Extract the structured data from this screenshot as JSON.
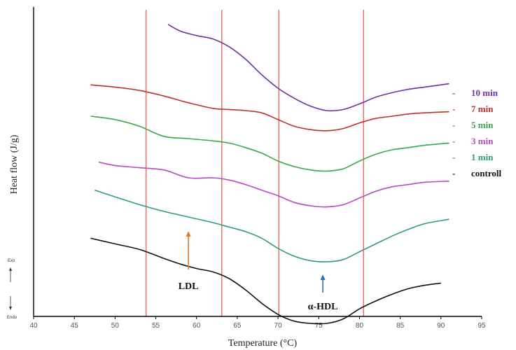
{
  "chart_data": {
    "type": "line",
    "xlabel": "Temperature (°C)",
    "ylabel": "Heat flow (J/g)",
    "xlim": [
      40,
      95
    ],
    "x_ticks": [
      "40",
      "45",
      "50",
      "55",
      "60",
      "65",
      "70",
      "75",
      "80",
      "85",
      "90",
      "95"
    ],
    "reference_lines_x": [
      53.8,
      63.1,
      70.1,
      80.5
    ],
    "y_scale_note": "arbitrary vertical offsets, Exo up / Endo down",
    "series": [
      {
        "name": "10 min",
        "color": "#7030a0",
        "x": [
          56.5,
          58,
          60,
          62,
          64,
          66,
          68,
          70,
          72,
          74,
          76,
          78,
          80,
          82,
          84,
          86,
          88,
          91
        ],
        "y": [
          10.6,
          10.3,
          10.1,
          9.95,
          9.6,
          9.05,
          8.35,
          7.75,
          7.3,
          6.95,
          6.75,
          6.8,
          7.05,
          7.35,
          7.55,
          7.7,
          7.8,
          7.95
        ]
      },
      {
        "name": "7 min",
        "color": "#c0302a",
        "x": [
          47,
          50,
          53,
          56,
          59,
          62,
          64,
          66,
          68,
          70,
          72,
          74,
          76,
          78,
          80,
          82,
          84,
          86,
          88,
          91
        ],
        "y": [
          7.9,
          7.8,
          7.65,
          7.4,
          7.1,
          6.85,
          6.8,
          6.75,
          6.65,
          6.35,
          6.05,
          5.9,
          5.85,
          5.95,
          6.2,
          6.4,
          6.5,
          6.6,
          6.65,
          6.7
        ]
      },
      {
        "name": "5 min",
        "color": "#3aa849",
        "x": [
          47,
          50,
          53,
          56,
          59,
          62,
          64,
          66,
          68,
          70,
          72,
          74,
          76,
          78,
          80,
          82,
          84,
          86,
          88,
          91
        ],
        "y": [
          6.5,
          6.35,
          6.05,
          5.6,
          5.5,
          5.4,
          5.3,
          5.1,
          4.85,
          4.5,
          4.25,
          4.1,
          4.05,
          4.15,
          4.5,
          4.8,
          5.0,
          5.1,
          5.2,
          5.3
        ]
      },
      {
        "name": "3 min",
        "color": "#b44bc2",
        "x": [
          48,
          50,
          53,
          56,
          59,
          62,
          64,
          66,
          68,
          70,
          72,
          74,
          76,
          78,
          80,
          82,
          84,
          86,
          88,
          91
        ],
        "y": [
          4.45,
          4.3,
          4.2,
          4.1,
          3.75,
          3.75,
          3.65,
          3.45,
          3.2,
          2.95,
          2.65,
          2.5,
          2.45,
          2.55,
          2.85,
          3.15,
          3.35,
          3.45,
          3.55,
          3.6
        ]
      },
      {
        "name": "1 min",
        "color": "#2e9c7f",
        "x": [
          47.5,
          50,
          53,
          56,
          59,
          62,
          64,
          66,
          68,
          70,
          72,
          74,
          76,
          78,
          80,
          82,
          84,
          86,
          88,
          91
        ],
        "y": [
          3.2,
          2.9,
          2.55,
          2.25,
          2.0,
          1.75,
          1.55,
          1.35,
          1.05,
          0.6,
          0.25,
          0.05,
          0.0,
          0.1,
          0.45,
          0.8,
          1.15,
          1.45,
          1.7,
          1.9
        ]
      },
      {
        "name": "controll",
        "color": "#111111",
        "x": [
          47,
          50,
          53,
          56,
          58,
          60,
          62,
          64,
          66,
          68,
          70,
          72,
          74,
          76,
          78,
          80,
          82,
          84,
          86,
          88,
          90
        ],
        "y": [
          1.05,
          0.8,
          0.55,
          0.15,
          -0.1,
          -0.3,
          -0.45,
          -0.75,
          -1.25,
          -1.85,
          -2.35,
          -2.65,
          -2.75,
          -2.75,
          -2.55,
          -2.1,
          -1.75,
          -1.45,
          -1.2,
          -1.05,
          -0.95
        ]
      }
    ],
    "annotations": [
      {
        "text": "LDL",
        "arrow_x": 59,
        "arrow_color": "#e07a2a"
      },
      {
        "text": "α-HDL",
        "arrow_x": 75.5,
        "arrow_color": "#2f6fc0"
      }
    ],
    "side_labels": {
      "exo": "Exo",
      "endo": "Endo"
    }
  }
}
